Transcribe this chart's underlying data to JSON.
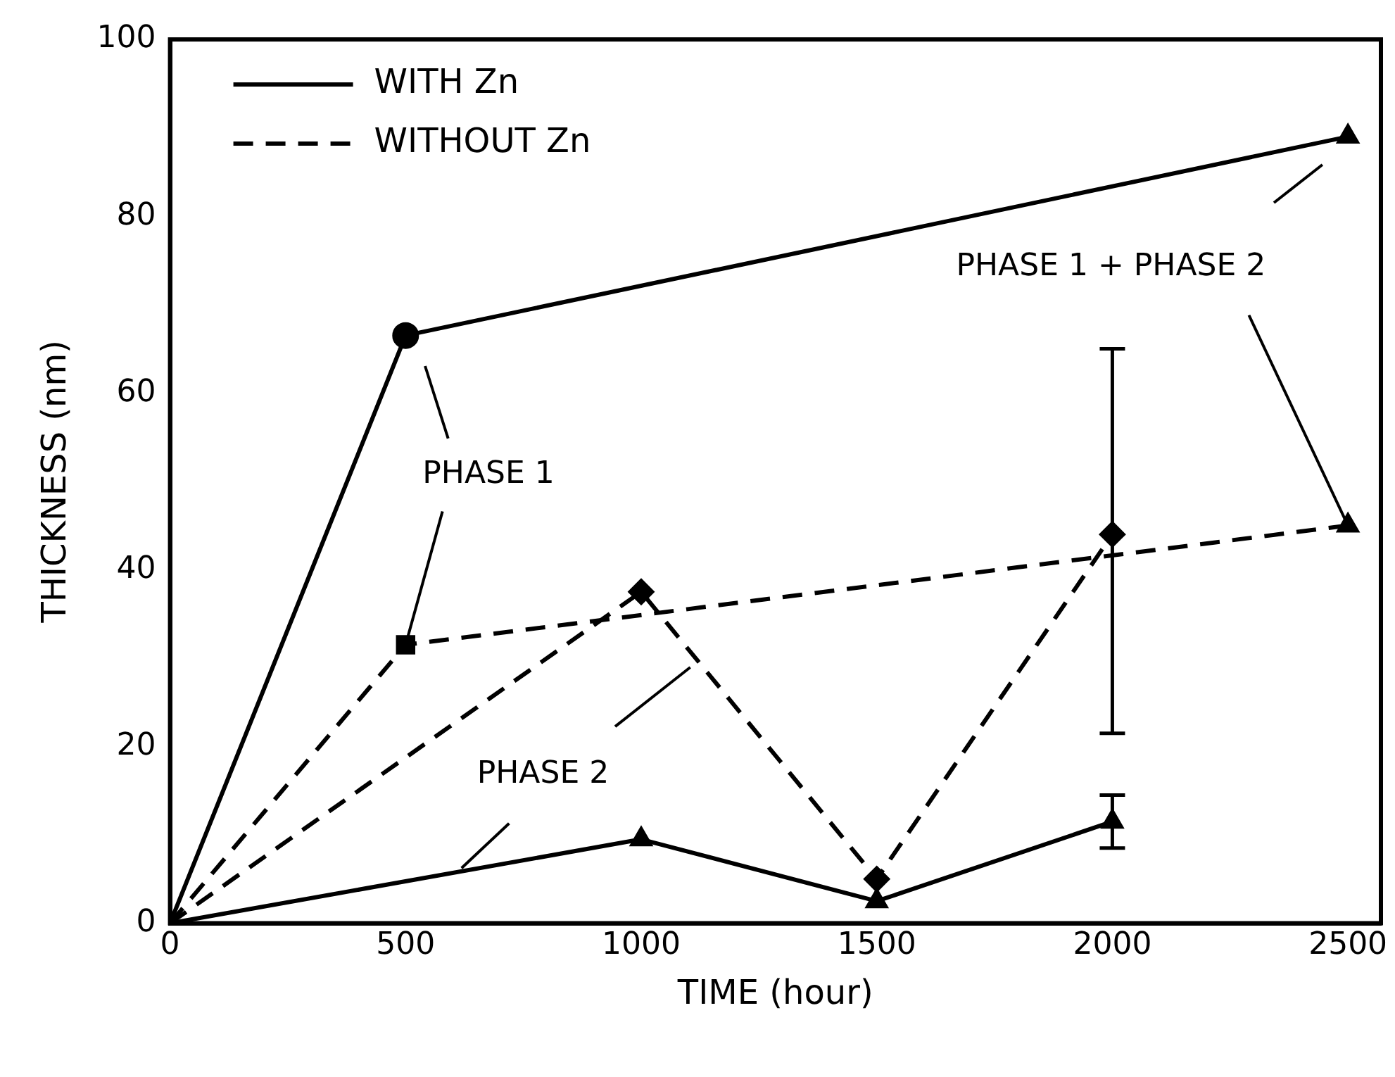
{
  "chart_data": {
    "type": "line",
    "xlabel": "TIME (hour)",
    "ylabel": "THICKNESS (nm)",
    "xlim": [
      0,
      2570
    ],
    "xticks": [
      0,
      500,
      1000,
      1500,
      2000,
      2500
    ],
    "ylim": [
      0,
      100
    ],
    "yticks": [
      0,
      20,
      40,
      60,
      80,
      100
    ],
    "grid": false,
    "legend": "top left",
    "series": [
      {
        "name": "WITH Zn",
        "type": "line",
        "color": "#000000",
        "line_style": "solid",
        "marker": "none",
        "x": [
          0,
          500,
          2500
        ],
        "values": [
          0,
          66.5,
          89
        ]
      },
      {
        "name": "WITHOUT Zn",
        "type": "line",
        "color": "#000000",
        "line_style": "dashed",
        "marker": "none",
        "x": [
          0,
          500,
          2500
        ],
        "values": [
          0,
          31.5,
          45
        ]
      },
      {
        "type": "line",
        "color": "#000000",
        "line_style": "solid",
        "marker": "none",
        "x": [
          0,
          1000,
          1500,
          2000
        ],
        "values": [
          0,
          9.5,
          2.5,
          11.5
        ]
      },
      {
        "type": "line",
        "color": "#000000",
        "line_style": "dashed",
        "marker": "none",
        "x": [
          0,
          1000,
          1500,
          2000
        ],
        "values": [
          0,
          37.5,
          5,
          44
        ]
      },
      {
        "type": "scatter",
        "color": "#000000",
        "marker": "circle",
        "x": [
          500
        ],
        "values": [
          66.5
        ]
      },
      {
        "type": "scatter",
        "color": "#000000",
        "marker": "square",
        "x": [
          500
        ],
        "values": [
          31.5
        ]
      },
      {
        "type": "scatter",
        "color": "#000000",
        "marker": "triangle",
        "x": [
          2500,
          2500
        ],
        "values": [
          89,
          45
        ]
      },
      {
        "type": "scatter",
        "color": "#000000",
        "marker": "triangle",
        "x": [
          1000,
          1500,
          2000
        ],
        "values": [
          9.5,
          2.5,
          11.5
        ],
        "errors": [
          null,
          null,
          [
            8.5,
            14.5
          ]
        ]
      },
      {
        "type": "scatter",
        "color": "#000000",
        "marker": "diamond",
        "x": [
          1000,
          1500,
          2000
        ],
        "values": [
          37.5,
          5,
          44
        ],
        "errors": [
          null,
          null,
          [
            21.5,
            65
          ]
        ]
      }
    ],
    "annotations": [
      {
        "text": "PHASE 1",
        "x": 500,
        "y": 31.5
      },
      {
        "text": "PHASE 2",
        "x": 610,
        "y": 5.8
      },
      {
        "text": "PHASE 1 + PHASE 2",
        "x": 2500,
        "y": 45
      }
    ]
  }
}
